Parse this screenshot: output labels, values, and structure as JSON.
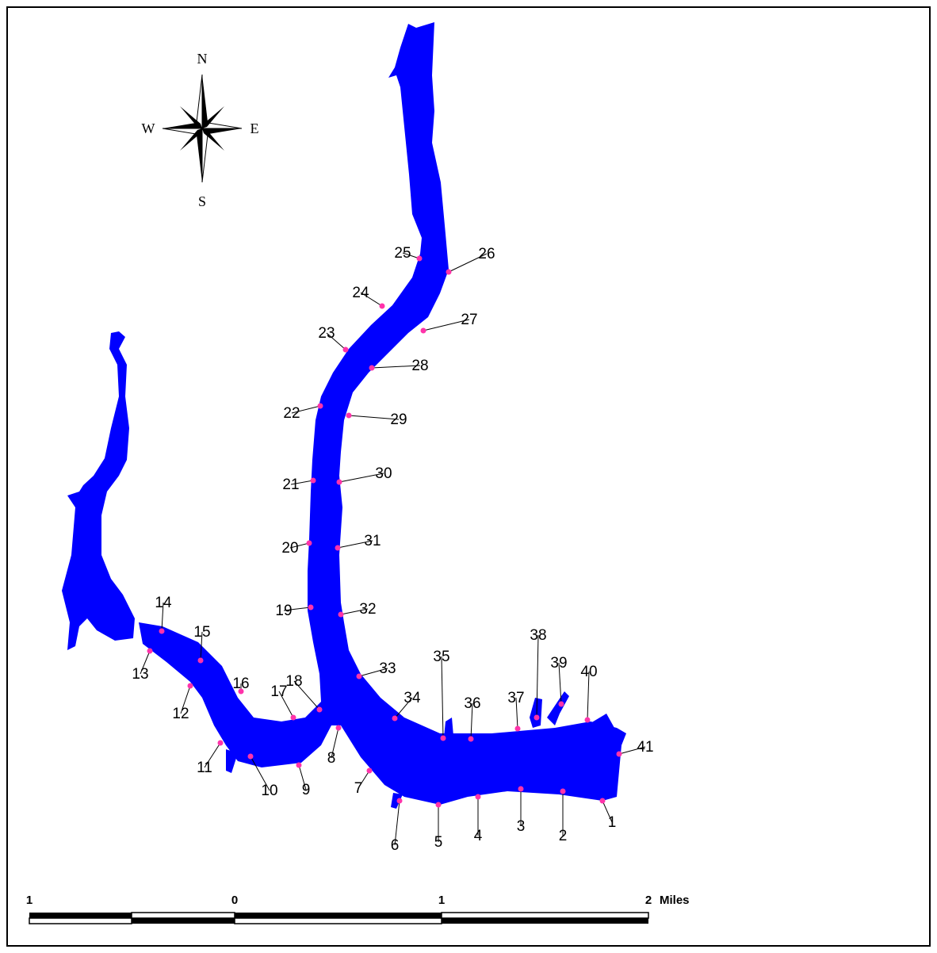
{
  "compass": {
    "north": "N",
    "south": "S",
    "east": "E",
    "west": "W"
  },
  "scale_bar": {
    "ticks": [
      "1",
      "0",
      "1",
      "2"
    ],
    "unit": "Miles"
  },
  "water_color": "#0000ff",
  "site_color": "#ff33aa",
  "sites": [
    "1",
    "2",
    "3",
    "4",
    "5",
    "6",
    "7",
    "8",
    "9",
    "10",
    "11",
    "12",
    "13",
    "14",
    "15",
    "16",
    "17",
    "18",
    "19",
    "20",
    "21",
    "22",
    "23",
    "24",
    "25",
    "26",
    "27",
    "28",
    "29",
    "30",
    "31",
    "32",
    "33",
    "34",
    "35",
    "36",
    "37",
    "38",
    "39",
    "40",
    "41"
  ]
}
